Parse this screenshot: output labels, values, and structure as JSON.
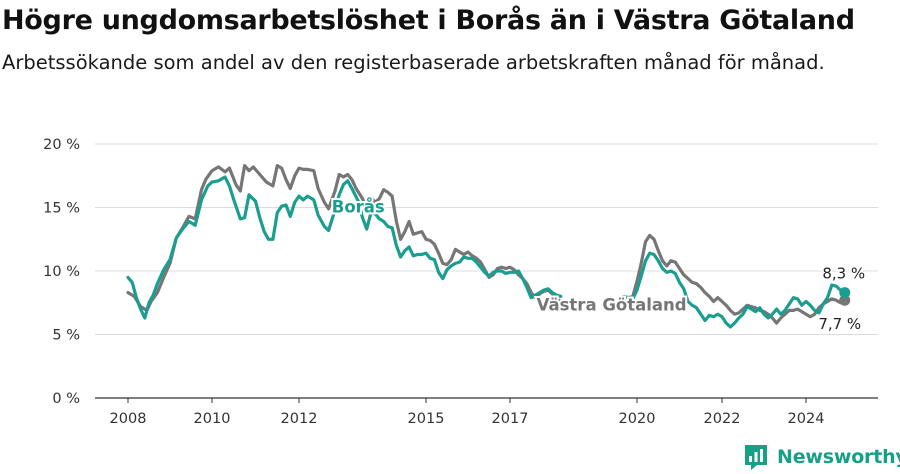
{
  "title": "Högre ungdomsarbetslöshet i Borås än i Västra Götaland",
  "subtitle": "Arbetssökande som andel av den registerbaserade arbetskraften månad för månad.",
  "brand": {
    "name": "Newsworthy",
    "icon": "bar-chart-icon",
    "color": "#16a085"
  },
  "chart_data": {
    "type": "line",
    "title": "Högre ungdomsarbetslöshet i Borås än i Västra Götaland",
    "subtitle": "Arbetssökande som andel av den registerbaserade arbetskraften månad för månad.",
    "xlabel": "",
    "ylabel": "",
    "xlim": [
      2007.5,
      2025.3
    ],
    "ylim": [
      0,
      20
    ],
    "grid": true,
    "x_ticks": [
      2008,
      2010,
      2012,
      2015,
      2017,
      2020,
      2022,
      2024
    ],
    "x_tick_labels": [
      "2008",
      "2010",
      "2012",
      "2015",
      "2017",
      "2020",
      "2022",
      "2024"
    ],
    "y_ticks": [
      0,
      5,
      10,
      15,
      20
    ],
    "y_tick_labels": [
      "0 %",
      "5 %",
      "10 %",
      "15 %",
      "20 %"
    ],
    "gap": [
      2018.2,
      2019.6
    ],
    "series": [
      {
        "name": "Västra Götaland",
        "color": "#767676",
        "label_at": [
          2019.4,
          6.9
        ],
        "end_label": "7,7 %",
        "end_value": 7.7,
        "points": [
          [
            2008.0,
            8.3
          ],
          [
            2008.15,
            8.0
          ],
          [
            2008.3,
            7.2
          ],
          [
            2008.45,
            6.9
          ],
          [
            2008.55,
            7.6
          ],
          [
            2008.7,
            8.3
          ],
          [
            2008.85,
            9.5
          ],
          [
            2009.0,
            10.6
          ],
          [
            2009.15,
            12.6
          ],
          [
            2009.3,
            13.4
          ],
          [
            2009.45,
            14.3
          ],
          [
            2009.6,
            14.1
          ],
          [
            2009.75,
            16.4
          ],
          [
            2009.85,
            17.2
          ],
          [
            2010.0,
            17.9
          ],
          [
            2010.15,
            18.2
          ],
          [
            2010.3,
            17.8
          ],
          [
            2010.4,
            18.1
          ],
          [
            2010.55,
            16.8
          ],
          [
            2010.65,
            16.3
          ],
          [
            2010.75,
            18.3
          ],
          [
            2010.85,
            17.9
          ],
          [
            2010.95,
            18.2
          ],
          [
            2011.1,
            17.6
          ],
          [
            2011.25,
            17.0
          ],
          [
            2011.4,
            16.7
          ],
          [
            2011.5,
            18.3
          ],
          [
            2011.6,
            18.1
          ],
          [
            2011.7,
            17.2
          ],
          [
            2011.8,
            16.5
          ],
          [
            2011.9,
            17.5
          ],
          [
            2012.0,
            18.1
          ],
          [
            2012.1,
            18.0
          ],
          [
            2012.2,
            18.0
          ],
          [
            2012.35,
            17.9
          ],
          [
            2012.45,
            16.5
          ],
          [
            2012.6,
            15.4
          ],
          [
            2012.7,
            14.9
          ],
          [
            2012.85,
            16.3
          ],
          [
            2012.95,
            17.6
          ],
          [
            2013.05,
            17.4
          ],
          [
            2013.15,
            17.6
          ],
          [
            2013.25,
            17.2
          ],
          [
            2013.35,
            16.5
          ],
          [
            2013.5,
            15.7
          ],
          [
            2013.6,
            14.9
          ],
          [
            2013.7,
            15.8
          ],
          [
            2013.8,
            15.4
          ],
          [
            2013.9,
            15.7
          ],
          [
            2014.0,
            16.4
          ],
          [
            2014.1,
            16.2
          ],
          [
            2014.2,
            15.9
          ],
          [
            2014.3,
            13.9
          ],
          [
            2014.4,
            12.5
          ],
          [
            2014.5,
            13.1
          ],
          [
            2014.6,
            13.9
          ],
          [
            2014.7,
            12.9
          ],
          [
            2014.8,
            13.0
          ],
          [
            2014.9,
            13.1
          ],
          [
            2015.0,
            12.5
          ],
          [
            2015.1,
            12.4
          ],
          [
            2015.2,
            12.1
          ],
          [
            2015.3,
            11.4
          ],
          [
            2015.4,
            10.6
          ],
          [
            2015.5,
            10.5
          ],
          [
            2015.6,
            10.9
          ],
          [
            2015.7,
            11.7
          ],
          [
            2015.8,
            11.5
          ],
          [
            2015.9,
            11.3
          ],
          [
            2016.0,
            11.5
          ],
          [
            2016.1,
            11.2
          ],
          [
            2016.2,
            11.0
          ],
          [
            2016.3,
            10.7
          ],
          [
            2016.4,
            10.1
          ],
          [
            2016.5,
            9.5
          ],
          [
            2016.6,
            9.7
          ],
          [
            2016.7,
            10.2
          ],
          [
            2016.8,
            10.3
          ],
          [
            2016.9,
            10.2
          ],
          [
            2017.0,
            10.3
          ],
          [
            2017.1,
            10.1
          ],
          [
            2017.2,
            9.7
          ],
          [
            2017.3,
            9.4
          ],
          [
            2017.4,
            9.0
          ],
          [
            2017.5,
            8.3
          ],
          [
            2017.6,
            7.9
          ],
          [
            2017.7,
            8.2
          ],
          [
            2017.8,
            8.4
          ],
          [
            2017.9,
            8.5
          ],
          [
            2018.0,
            8.2
          ],
          [
            2018.1,
            7.8
          ],
          [
            2018.2,
            7.6
          ],
          [
            2019.6,
            7.7
          ],
          [
            2019.7,
            7.9
          ],
          [
            2019.8,
            7.9
          ],
          [
            2019.9,
            8.0
          ],
          [
            2020.0,
            9.2
          ],
          [
            2020.1,
            10.6
          ],
          [
            2020.2,
            12.3
          ],
          [
            2020.3,
            12.8
          ],
          [
            2020.4,
            12.5
          ],
          [
            2020.5,
            11.6
          ],
          [
            2020.6,
            10.8
          ],
          [
            2020.7,
            10.4
          ],
          [
            2020.8,
            10.8
          ],
          [
            2020.9,
            10.7
          ],
          [
            2021.0,
            10.2
          ],
          [
            2021.1,
            9.7
          ],
          [
            2021.2,
            9.4
          ],
          [
            2021.3,
            9.1
          ],
          [
            2021.4,
            9.0
          ],
          [
            2021.5,
            8.7
          ],
          [
            2021.6,
            8.3
          ],
          [
            2021.7,
            8.0
          ],
          [
            2021.8,
            7.6
          ],
          [
            2021.9,
            7.9
          ],
          [
            2022.0,
            7.6
          ],
          [
            2022.1,
            7.3
          ],
          [
            2022.2,
            6.9
          ],
          [
            2022.3,
            6.6
          ],
          [
            2022.4,
            6.7
          ],
          [
            2022.5,
            7.0
          ],
          [
            2022.6,
            7.3
          ],
          [
            2022.7,
            7.2
          ],
          [
            2022.8,
            7.1
          ],
          [
            2022.9,
            6.9
          ],
          [
            2023.0,
            6.8
          ],
          [
            2023.1,
            6.6
          ],
          [
            2023.2,
            6.3
          ],
          [
            2023.3,
            5.9
          ],
          [
            2023.4,
            6.3
          ],
          [
            2023.5,
            6.6
          ],
          [
            2023.6,
            6.9
          ],
          [
            2023.7,
            6.9
          ],
          [
            2023.8,
            7.0
          ],
          [
            2023.9,
            6.8
          ],
          [
            2024.0,
            6.6
          ],
          [
            2024.1,
            6.4
          ],
          [
            2024.2,
            6.6
          ],
          [
            2024.3,
            7.1
          ],
          [
            2024.4,
            7.4
          ],
          [
            2024.5,
            7.6
          ],
          [
            2024.6,
            7.8
          ],
          [
            2024.7,
            7.7
          ],
          [
            2024.8,
            7.5
          ],
          [
            2024.9,
            7.7
          ]
        ]
      },
      {
        "name": "Borås",
        "color": "#1a9e8f",
        "label_at": [
          2013.4,
          14.6
        ],
        "end_label": "8,3 %",
        "end_value": 8.3,
        "points": [
          [
            2008.0,
            9.5
          ],
          [
            2008.1,
            9.1
          ],
          [
            2008.2,
            7.9
          ],
          [
            2008.3,
            7.0
          ],
          [
            2008.4,
            6.3
          ],
          [
            2008.5,
            7.5
          ],
          [
            2008.6,
            8.1
          ],
          [
            2008.7,
            9.0
          ],
          [
            2008.85,
            10.1
          ],
          [
            2009.0,
            10.9
          ],
          [
            2009.15,
            12.6
          ],
          [
            2009.3,
            13.3
          ],
          [
            2009.45,
            13.9
          ],
          [
            2009.6,
            13.6
          ],
          [
            2009.75,
            15.6
          ],
          [
            2009.9,
            16.7
          ],
          [
            2010.0,
            17.0
          ],
          [
            2010.15,
            17.1
          ],
          [
            2010.3,
            17.4
          ],
          [
            2010.4,
            16.7
          ],
          [
            2010.5,
            15.6
          ],
          [
            2010.65,
            14.1
          ],
          [
            2010.75,
            14.2
          ],
          [
            2010.85,
            16.0
          ],
          [
            2011.0,
            15.5
          ],
          [
            2011.1,
            14.2
          ],
          [
            2011.2,
            13.1
          ],
          [
            2011.3,
            12.5
          ],
          [
            2011.4,
            12.5
          ],
          [
            2011.5,
            14.6
          ],
          [
            2011.6,
            15.1
          ],
          [
            2011.7,
            15.2
          ],
          [
            2011.8,
            14.3
          ],
          [
            2011.9,
            15.4
          ],
          [
            2012.0,
            15.9
          ],
          [
            2012.1,
            15.6
          ],
          [
            2012.2,
            15.9
          ],
          [
            2012.35,
            15.6
          ],
          [
            2012.45,
            14.4
          ],
          [
            2012.6,
            13.5
          ],
          [
            2012.7,
            13.2
          ],
          [
            2012.85,
            14.8
          ],
          [
            2012.95,
            16.0
          ],
          [
            2013.05,
            16.8
          ],
          [
            2013.15,
            17.1
          ],
          [
            2013.25,
            16.5
          ],
          [
            2013.4,
            15.5
          ],
          [
            2013.5,
            14.2
          ],
          [
            2013.6,
            13.3
          ],
          [
            2013.7,
            14.6
          ],
          [
            2013.8,
            14.5
          ],
          [
            2013.9,
            14.1
          ],
          [
            2014.0,
            13.9
          ],
          [
            2014.1,
            13.5
          ],
          [
            2014.2,
            13.4
          ],
          [
            2014.3,
            12.0
          ],
          [
            2014.4,
            11.1
          ],
          [
            2014.5,
            11.6
          ],
          [
            2014.6,
            11.9
          ],
          [
            2014.7,
            11.2
          ],
          [
            2014.8,
            11.3
          ],
          [
            2014.9,
            11.3
          ],
          [
            2015.0,
            11.4
          ],
          [
            2015.1,
            11.0
          ],
          [
            2015.2,
            10.9
          ],
          [
            2015.3,
            9.9
          ],
          [
            2015.4,
            9.4
          ],
          [
            2015.5,
            10.1
          ],
          [
            2015.6,
            10.4
          ],
          [
            2015.7,
            10.6
          ],
          [
            2015.8,
            10.7
          ],
          [
            2015.9,
            11.1
          ],
          [
            2016.0,
            11.0
          ],
          [
            2016.1,
            11.0
          ],
          [
            2016.2,
            10.7
          ],
          [
            2016.3,
            10.3
          ],
          [
            2016.4,
            9.9
          ],
          [
            2016.5,
            9.6
          ],
          [
            2016.6,
            9.9
          ],
          [
            2016.7,
            10.0
          ],
          [
            2016.8,
            10.0
          ],
          [
            2016.9,
            9.8
          ],
          [
            2017.0,
            9.9
          ],
          [
            2017.1,
            9.9
          ],
          [
            2017.2,
            10.0
          ],
          [
            2017.3,
            9.4
          ],
          [
            2017.4,
            8.7
          ],
          [
            2017.5,
            7.9
          ],
          [
            2017.6,
            8.1
          ],
          [
            2017.7,
            8.3
          ],
          [
            2017.8,
            8.5
          ],
          [
            2017.9,
            8.6
          ],
          [
            2018.0,
            8.3
          ],
          [
            2018.1,
            8.1
          ],
          [
            2018.2,
            8.0
          ],
          [
            2019.6,
            7.9
          ],
          [
            2019.7,
            8.0
          ],
          [
            2019.8,
            7.9
          ],
          [
            2019.9,
            7.8
          ],
          [
            2020.0,
            8.5
          ],
          [
            2020.1,
            9.6
          ],
          [
            2020.2,
            10.8
          ],
          [
            2020.3,
            11.4
          ],
          [
            2020.4,
            11.3
          ],
          [
            2020.5,
            10.8
          ],
          [
            2020.6,
            10.2
          ],
          [
            2020.7,
            9.9
          ],
          [
            2020.8,
            10.0
          ],
          [
            2020.9,
            9.8
          ],
          [
            2021.0,
            9.1
          ],
          [
            2021.1,
            8.6
          ],
          [
            2021.2,
            7.6
          ],
          [
            2021.3,
            7.3
          ],
          [
            2021.4,
            7.1
          ],
          [
            2021.5,
            6.6
          ],
          [
            2021.6,
            6.1
          ],
          [
            2021.7,
            6.5
          ],
          [
            2021.8,
            6.4
          ],
          [
            2021.9,
            6.6
          ],
          [
            2022.0,
            6.4
          ],
          [
            2022.1,
            5.9
          ],
          [
            2022.2,
            5.6
          ],
          [
            2022.3,
            5.9
          ],
          [
            2022.4,
            6.3
          ],
          [
            2022.5,
            6.6
          ],
          [
            2022.6,
            7.2
          ],
          [
            2022.7,
            7.0
          ],
          [
            2022.8,
            6.8
          ],
          [
            2022.9,
            7.1
          ],
          [
            2023.0,
            6.6
          ],
          [
            2023.1,
            6.3
          ],
          [
            2023.2,
            6.6
          ],
          [
            2023.3,
            7.0
          ],
          [
            2023.4,
            6.6
          ],
          [
            2023.5,
            6.9
          ],
          [
            2023.6,
            7.4
          ],
          [
            2023.7,
            7.9
          ],
          [
            2023.8,
            7.8
          ],
          [
            2023.9,
            7.3
          ],
          [
            2024.0,
            7.6
          ],
          [
            2024.1,
            7.3
          ],
          [
            2024.2,
            6.9
          ],
          [
            2024.3,
            6.7
          ],
          [
            2024.4,
            7.4
          ],
          [
            2024.5,
            7.9
          ],
          [
            2024.6,
            8.9
          ],
          [
            2024.7,
            8.8
          ],
          [
            2024.8,
            8.5
          ],
          [
            2024.9,
            8.3
          ]
        ]
      }
    ]
  }
}
